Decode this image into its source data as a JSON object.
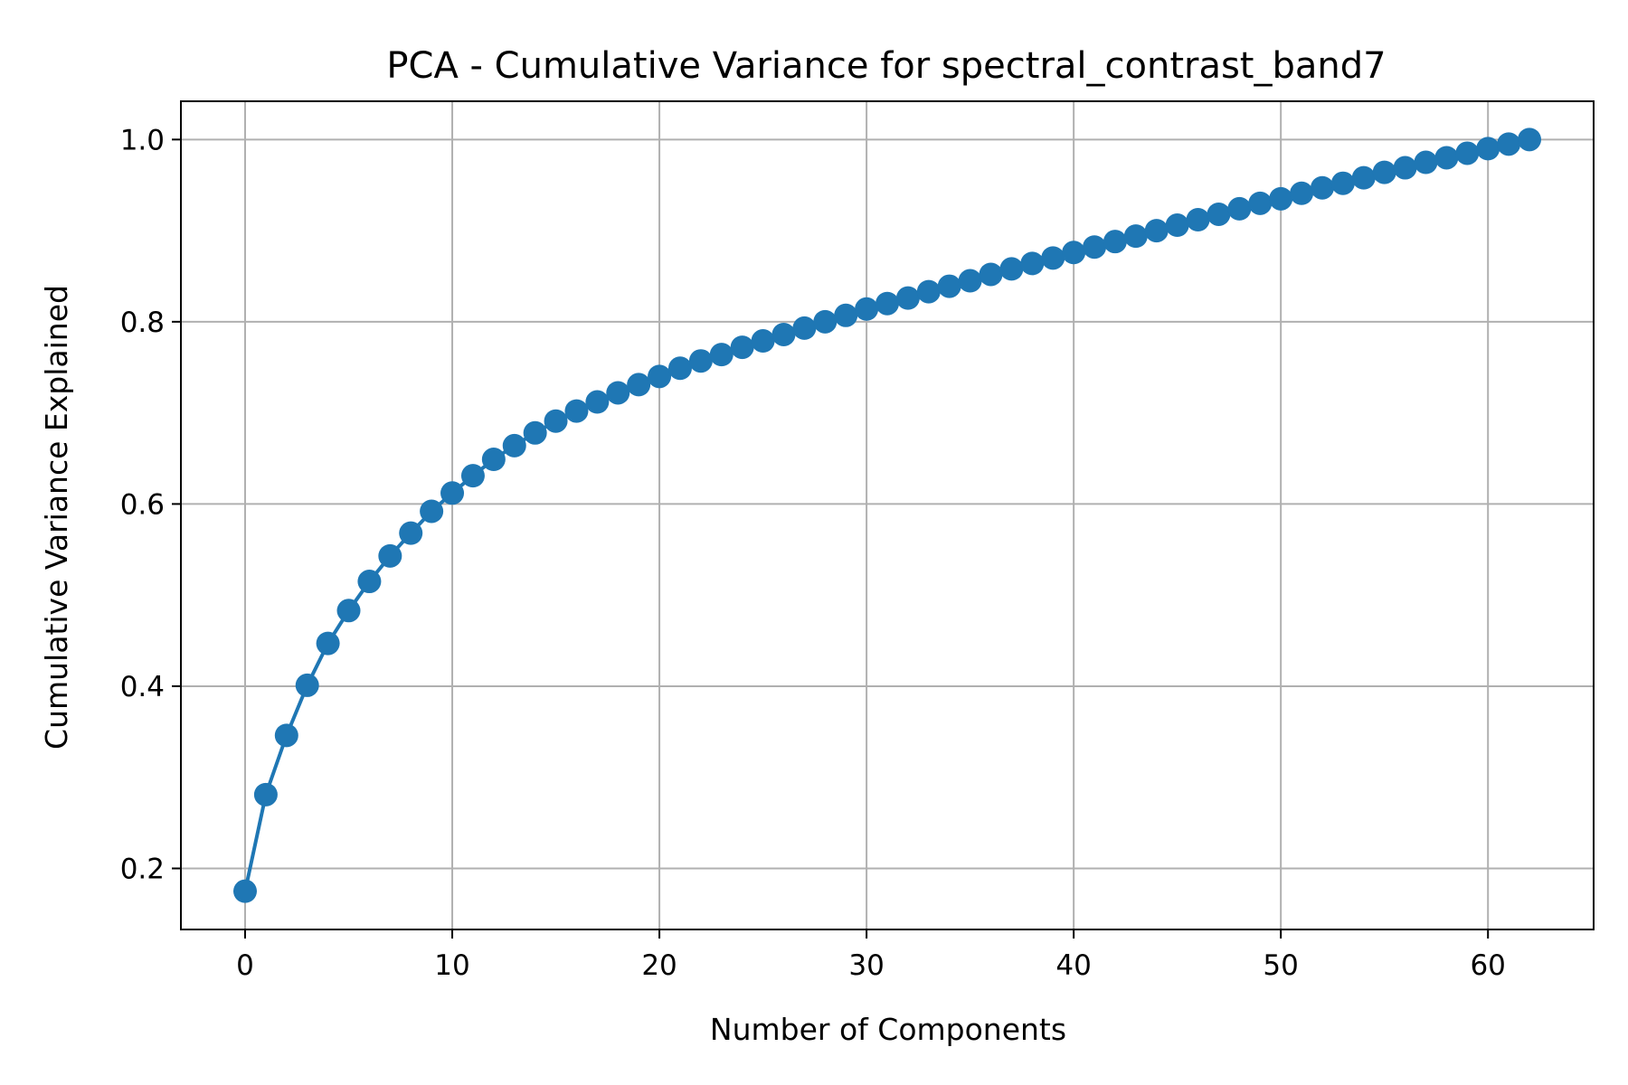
{
  "chart_data": {
    "type": "line",
    "title": "PCA - Cumulative Variance for spectral_contrast_band7",
    "xlabel": "Number of Components",
    "ylabel": "Cumulative Variance Explained",
    "xlim": [
      -3.1,
      65.1
    ],
    "ylim": [
      0.133,
      1.042
    ],
    "x_ticks": [
      0,
      10,
      20,
      30,
      40,
      50,
      60
    ],
    "y_ticks": [
      0.2,
      0.4,
      0.6,
      0.8,
      1.0
    ],
    "x_tick_labels": [
      "0",
      "10",
      "20",
      "30",
      "40",
      "50",
      "60"
    ],
    "y_tick_labels": [
      "0.2",
      "0.4",
      "0.6",
      "0.8",
      "1.0"
    ],
    "grid": true,
    "marker": "o",
    "series": [
      {
        "color": "#1f77b4",
        "x": [
          0,
          1,
          2,
          3,
          4,
          5,
          6,
          7,
          8,
          9,
          10,
          11,
          12,
          13,
          14,
          15,
          16,
          17,
          18,
          19,
          20,
          21,
          22,
          23,
          24,
          25,
          26,
          27,
          28,
          29,
          30,
          31,
          32,
          33,
          34,
          35,
          36,
          37,
          38,
          39,
          40,
          41,
          42,
          43,
          44,
          45,
          46,
          47,
          48,
          49,
          50,
          51,
          52,
          53,
          54,
          55,
          56,
          57,
          58,
          59,
          60,
          61,
          62
        ],
        "values": [
          0.175,
          0.281,
          0.346,
          0.401,
          0.447,
          0.483,
          0.515,
          0.543,
          0.568,
          0.592,
          0.612,
          0.631,
          0.649,
          0.664,
          0.678,
          0.691,
          0.702,
          0.712,
          0.722,
          0.731,
          0.74,
          0.749,
          0.757,
          0.764,
          0.772,
          0.779,
          0.786,
          0.793,
          0.8,
          0.807,
          0.814,
          0.82,
          0.826,
          0.833,
          0.839,
          0.845,
          0.852,
          0.858,
          0.864,
          0.87,
          0.876,
          0.882,
          0.888,
          0.894,
          0.9,
          0.906,
          0.912,
          0.918,
          0.924,
          0.93,
          0.935,
          0.941,
          0.947,
          0.952,
          0.958,
          0.964,
          0.969,
          0.975,
          0.98,
          0.985,
          0.99,
          0.995,
          1.0
        ]
      }
    ]
  }
}
